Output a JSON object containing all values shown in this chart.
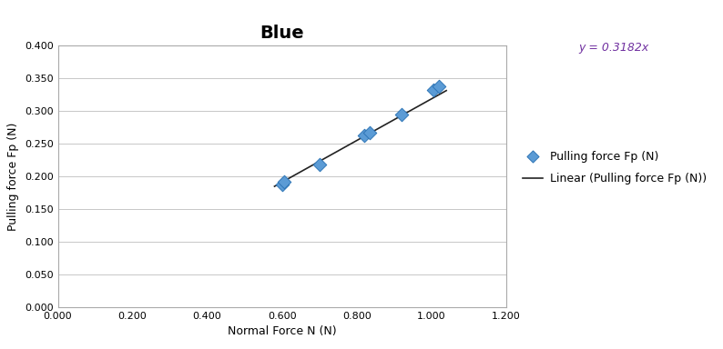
{
  "title": "Blue",
  "xlabel": "Normal Force N (N)",
  "ylabel": "Pulling force Fp (N)",
  "x_data": [
    0.6,
    0.605,
    0.7,
    0.82,
    0.835,
    0.92,
    1.005,
    1.02
  ],
  "y_data": [
    0.188,
    0.191,
    0.218,
    0.263,
    0.267,
    0.294,
    0.332,
    0.337
  ],
  "marker_color": "#5B9BD5",
  "marker_edge_color": "#2E75B6",
  "line_color": "#222222",
  "xlim": [
    0.0,
    1.2
  ],
  "ylim": [
    0.0,
    0.4
  ],
  "xticks": [
    0.0,
    0.2,
    0.4,
    0.6,
    0.8,
    1.0,
    1.2
  ],
  "yticks": [
    0.0,
    0.05,
    0.1,
    0.15,
    0.2,
    0.25,
    0.3,
    0.35,
    0.4
  ],
  "line_x_start": 0.58,
  "line_x_end": 1.04,
  "slope": 0.3182,
  "equation_text": "y = 0.3182x",
  "equation_color": "#7030A0",
  "legend_marker_label": "Pulling force Fp (N)",
  "legend_line_label": "Linear (Pulling force Fp (N))",
  "background_color": "#FFFFFF",
  "grid_color": "#BEBEBE",
  "title_fontsize": 14,
  "axis_label_fontsize": 9,
  "tick_fontsize": 8,
  "legend_fontsize": 9
}
